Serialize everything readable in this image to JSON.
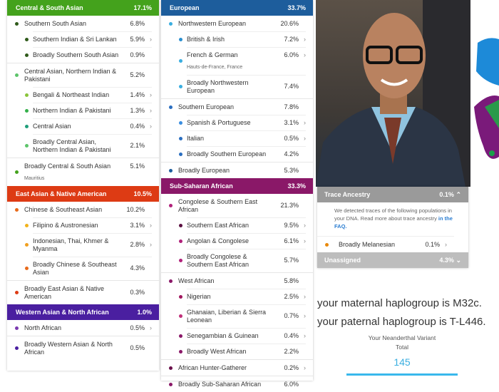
{
  "columns": [
    {
      "groups": [
        {
          "title": "Central & South Asian",
          "pct": "17.1%",
          "color": "#44a21c",
          "rows": [
            {
              "name": "Southern South Asian",
              "pct": "6.8%",
              "level": 1,
              "dot": "#2f5a1a"
            },
            {
              "name": "Southern Indian & Sri Lankan",
              "pct": "5.9%",
              "level": 2,
              "dot": "#2f5a1a",
              "more": true
            },
            {
              "name": "Broadly Southern South Asian",
              "pct": "0.9%",
              "level": 2,
              "dot": "#2f5a1a"
            },
            {
              "name": "Central Asian, Northern Indian & Pakistani",
              "pct": "5.2%",
              "level": 1,
              "dot": "#5cc46a"
            },
            {
              "name": "Bengali & Northeast Indian",
              "pct": "1.4%",
              "level": 2,
              "dot": "#8ac43a",
              "more": true
            },
            {
              "name": "Northern Indian & Pakistani",
              "pct": "1.3%",
              "level": 2,
              "dot": "#34b04a",
              "more": true
            },
            {
              "name": "Central Asian",
              "pct": "0.4%",
              "level": 2,
              "dot": "#1f9e7a",
              "more": true
            },
            {
              "name": "Broadly Central Asian, Northern Indian & Pakistani",
              "pct": "2.1%",
              "level": 2,
              "dot": "#5cc46a"
            },
            {
              "name": "Broadly Central & South Asian",
              "pct": "5.1%",
              "level": 1,
              "dot": "#44a21c",
              "note": "Mauritius"
            }
          ]
        },
        {
          "title": "East Asian & Native American",
          "pct": "10.5%",
          "color": "#dd3b14",
          "rows": [
            {
              "name": "Chinese & Southeast Asian",
              "pct": "10.2%",
              "level": 1,
              "dot": "#e86a1a"
            },
            {
              "name": "Filipino & Austronesian",
              "pct": "3.1%",
              "level": 2,
              "dot": "#f2b21a",
              "more": true
            },
            {
              "name": "Indonesian, Thai, Khmer & Myanma",
              "pct": "2.8%",
              "level": 2,
              "dot": "#f0a020",
              "more": true
            },
            {
              "name": "Broadly Chinese & Southeast Asian",
              "pct": "4.3%",
              "level": 2,
              "dot": "#e86a1a"
            },
            {
              "name": "Broadly East Asian & Native American",
              "pct": "0.3%",
              "level": 1,
              "dot": "#dd3b14"
            }
          ]
        },
        {
          "title": "Western Asian & North African",
          "pct": "1.0%",
          "color": "#4a1fa0",
          "rows": [
            {
              "name": "North African",
              "pct": "0.5%",
              "level": 1,
              "dot": "#7a3ab0",
              "more": true
            },
            {
              "name": "Broadly Western Asian & North African",
              "pct": "0.5%",
              "level": 1,
              "dot": "#4a1fa0"
            }
          ]
        }
      ]
    },
    {
      "groups": [
        {
          "title": "European",
          "pct": "33.7%",
          "color": "#1d5d9c",
          "rows": [
            {
              "name": "Northwestern European",
              "pct": "20.6%",
              "level": 1,
              "dot": "#3aaee0"
            },
            {
              "name": "British & Irish",
              "pct": "7.2%",
              "level": 2,
              "dot": "#2a8fd0",
              "more": true
            },
            {
              "name": "French & German",
              "pct": "6.0%",
              "level": 2,
              "dot": "#3aaee0",
              "more": true,
              "note": "Hauts-de-France, France"
            },
            {
              "name": "Broadly Northwestern European",
              "pct": "7.4%",
              "level": 2,
              "dot": "#3aaee0"
            },
            {
              "name": "Southern European",
              "pct": "7.8%",
              "level": 1,
              "dot": "#2a6ec0"
            },
            {
              "name": "Spanish & Portuguese",
              "pct": "3.1%",
              "level": 2,
              "dot": "#3a8ee0",
              "more": true
            },
            {
              "name": "Italian",
              "pct": "0.5%",
              "level": 2,
              "dot": "#2a6ec0",
              "more": true
            },
            {
              "name": "Broadly Southern European",
              "pct": "4.2%",
              "level": 2,
              "dot": "#2a6ec0"
            },
            {
              "name": "Broadly European",
              "pct": "5.3%",
              "level": 1,
              "dot": "#1d5d9c"
            }
          ]
        },
        {
          "title": "Sub-Saharan African",
          "pct": "33.3%",
          "color": "#8a1868",
          "rows": [
            {
              "name": "Congolese & Southern East African",
              "pct": "21.3%",
              "level": 1,
              "dot": "#b0207a"
            },
            {
              "name": "Southern East African",
              "pct": "9.5%",
              "level": 2,
              "dot": "#5a0f40",
              "more": true
            },
            {
              "name": "Angolan & Congolese",
              "pct": "6.1%",
              "level": 2,
              "dot": "#b0207a",
              "more": true
            },
            {
              "name": "Broadly Congolese & Southern East African",
              "pct": "5.7%",
              "level": 2,
              "dot": "#b0207a"
            },
            {
              "name": "West African",
              "pct": "5.8%",
              "level": 1,
              "dot": "#8a1868"
            },
            {
              "name": "Nigerian",
              "pct": "2.5%",
              "level": 2,
              "dot": "#a0165e",
              "more": true
            },
            {
              "name": "Ghanaian, Liberian & Sierra Leonean",
              "pct": "0.7%",
              "level": 2,
              "dot": "#c0307a",
              "more": true
            },
            {
              "name": "Senegambian & Guinean",
              "pct": "0.4%",
              "level": 2,
              "dot": "#8a1868",
              "more": true
            },
            {
              "name": "Broadly West African",
              "pct": "2.2%",
              "level": 2,
              "dot": "#8a1868"
            },
            {
              "name": "African Hunter-Gatherer",
              "pct": "0.2%",
              "level": 1,
              "dot": "#6a0f4a",
              "more": true
            },
            {
              "name": "Broadly Sub-Saharan African",
              "pct": "6.0%",
              "level": 1,
              "dot": "#8a1868"
            }
          ]
        }
      ]
    }
  ],
  "trace": {
    "title": "Trace Ancestry",
    "pct": "0.1%",
    "desc": "We detected traces of the following populations in your DNA. Read more about trace ancestry ",
    "link": "in the FAQ.",
    "row": {
      "name": "Broadly Melanesian",
      "pct": "0.1%",
      "dot": "#e8890c"
    }
  },
  "unassigned": {
    "title": "Unassigned",
    "pct": "4.3%"
  },
  "haplogroups": {
    "maternal": "your maternal haplogroup is M32c.",
    "paternal": "your paternal haplogroup is T-L446."
  },
  "neanderthal": {
    "label": "Your Neanderthal Variant",
    "sub": "Total",
    "value": "145",
    "color": "#3aaee0"
  }
}
